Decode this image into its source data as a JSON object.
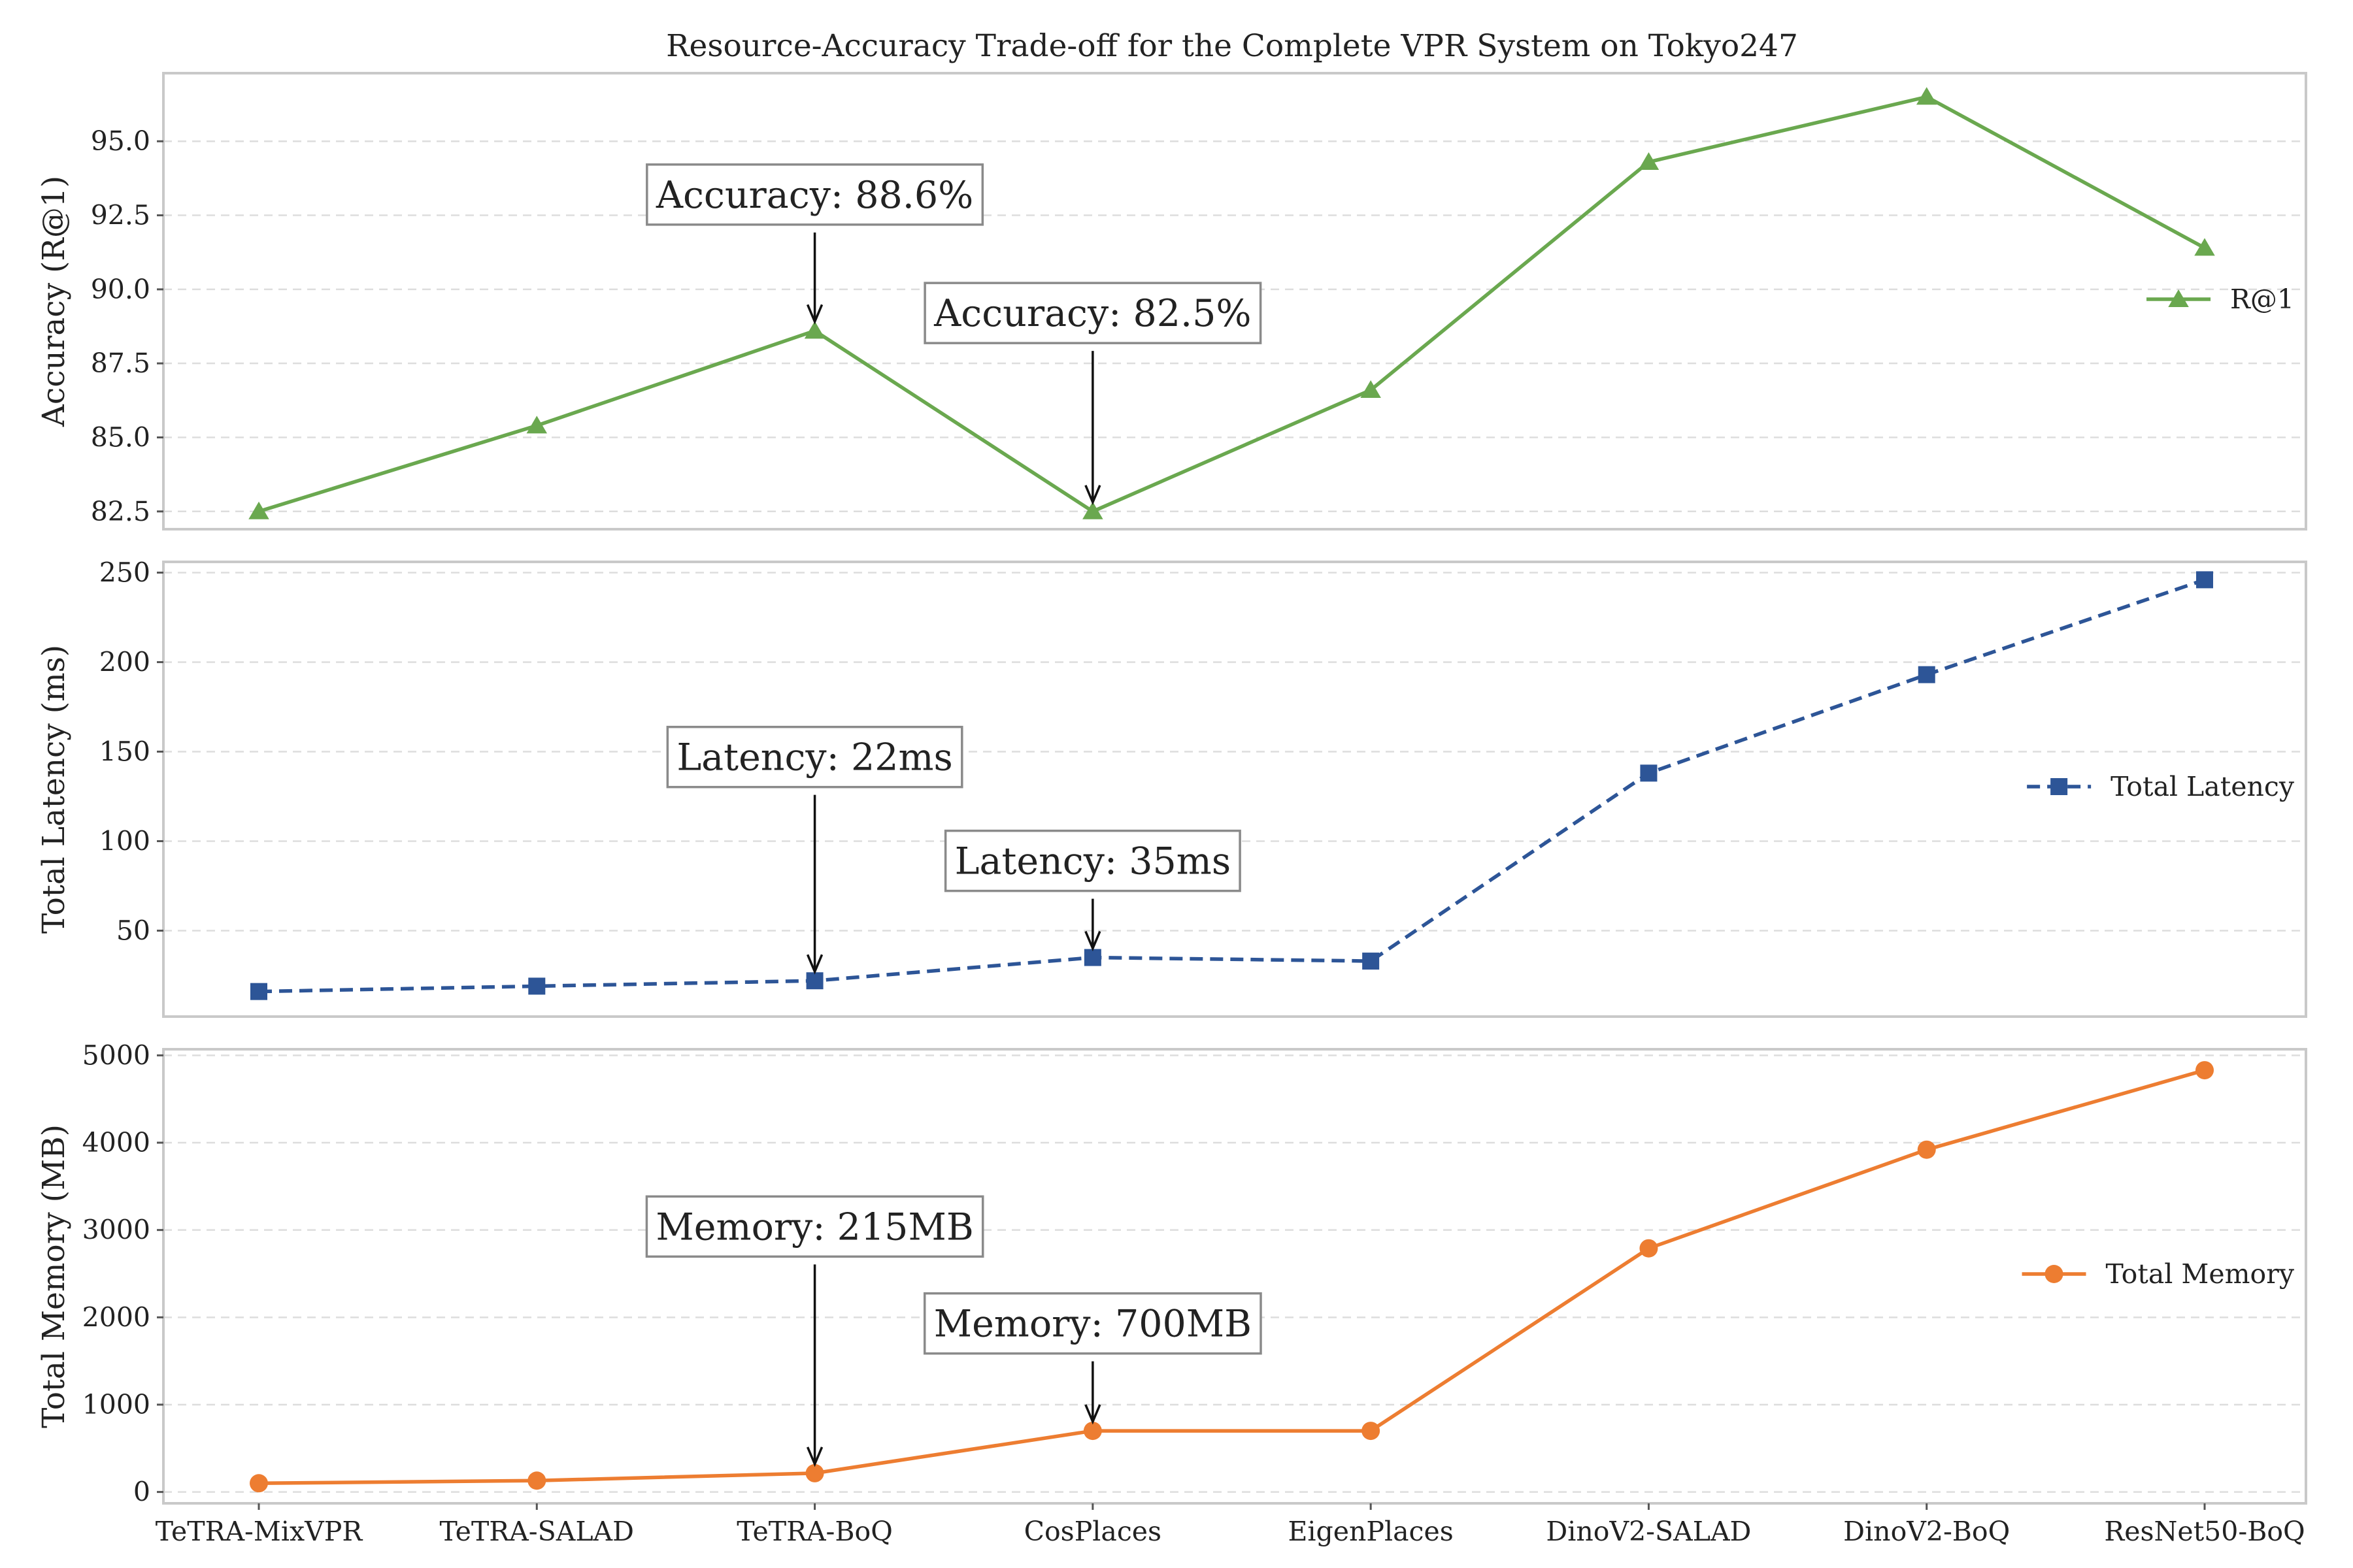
{
  "chart_data": {
    "type": "line",
    "title": "Resource-Accuracy Trade-off for the Complete VPR System on Tokyo247",
    "categories": [
      "TeTRA-MixVPR",
      "TeTRA-SALAD",
      "TeTRA-BoQ",
      "CosPlaces",
      "EigenPlaces",
      "DinoV2-SALAD",
      "DinoV2-BoQ",
      "ResNet50-BoQ"
    ],
    "panels": [
      {
        "id": "accuracy",
        "ylabel": "Accuracy (R@1)",
        "ylim": [
          81.9,
          97.3
        ],
        "yticks": [
          82.5,
          85.0,
          87.5,
          90.0,
          92.5,
          95.0
        ],
        "ytick_labels": [
          "82.5",
          "85.0",
          "87.5",
          "90.0",
          "92.5",
          "95.0"
        ],
        "grid": true,
        "series": [
          {
            "name": "R@1",
            "color": "#6aa84f",
            "marker": "triangle",
            "line_style": "solid",
            "values": [
              82.5,
              85.4,
              88.6,
              82.5,
              86.6,
              94.3,
              96.5,
              91.4
            ]
          }
        ],
        "legend_position": "center-right",
        "annotations": [
          {
            "text": "Accuracy: 88.6%",
            "category_index": 2,
            "value": 88.6,
            "text_value": 93.2
          },
          {
            "text": "Accuracy: 82.5%",
            "category_index": 3,
            "value": 82.5,
            "text_value": 89.2
          }
        ]
      },
      {
        "id": "latency",
        "ylabel": "Total Latency (ms)",
        "ylim": [
          2,
          256
        ],
        "yticks": [
          50,
          100,
          150,
          200,
          250
        ],
        "ytick_labels": [
          "50",
          "100",
          "150",
          "200",
          "250"
        ],
        "grid": true,
        "series": [
          {
            "name": "Total Latency",
            "color": "#2d5597",
            "marker": "square",
            "line_style": "dashed",
            "values": [
              16,
              19,
              22,
              35,
              33,
              138,
              193,
              246
            ]
          }
        ],
        "legend_position": "center-right",
        "annotations": [
          {
            "text": "Latency: 22ms",
            "category_index": 2,
            "value": 22,
            "text_value": 147
          },
          {
            "text": "Latency: 35ms",
            "category_index": 3,
            "value": 35,
            "text_value": 89
          }
        ]
      },
      {
        "id": "memory",
        "ylabel": "Total Memory (MB)",
        "ylim": [
          -130,
          5070
        ],
        "yticks": [
          0,
          1000,
          2000,
          3000,
          4000,
          5000
        ],
        "ytick_labels": [
          "0",
          "1000",
          "2000",
          "3000",
          "4000",
          "5000"
        ],
        "grid": true,
        "series": [
          {
            "name": "Total Memory",
            "color": "#ed7d31",
            "marker": "circle",
            "line_style": "solid",
            "values": [
              100,
              130,
              215,
              700,
              700,
              2790,
              3920,
              4830
            ]
          }
        ],
        "legend_position": "center-right",
        "annotations": [
          {
            "text": "Memory: 215MB",
            "category_index": 2,
            "value": 215,
            "text_value": 3040
          },
          {
            "text": "Memory: 700MB",
            "category_index": 3,
            "value": 700,
            "text_value": 1930
          }
        ]
      }
    ]
  }
}
